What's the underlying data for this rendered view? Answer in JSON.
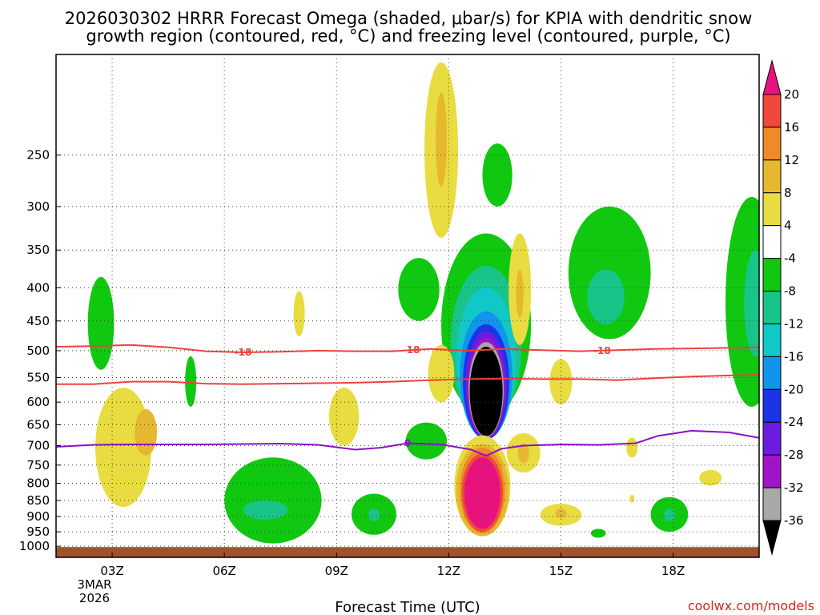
{
  "chart_data": {
    "type": "heatmap",
    "title_lines": [
      "2026030302 HRRR Forecast Omega (shaded, μbar/s) for KPIA with dendritic snow",
      "growth region (contoured, red, °C) and freezing level (contoured, purple, °C)"
    ],
    "xlabel": "Forecast Time (UTC)",
    "ylabel": "",
    "credit": "coolwx.com/models",
    "x_range_hours": [
      1.5,
      20.3
    ],
    "x_ticks": [
      {
        "hour": 3,
        "label": "03Z"
      },
      {
        "hour": 6,
        "label": "06Z"
      },
      {
        "hour": 9,
        "label": "09Z"
      },
      {
        "hour": 12,
        "label": "12Z"
      },
      {
        "hour": 15,
        "label": "15Z"
      },
      {
        "hour": 18,
        "label": "18Z"
      }
    ],
    "date_label_lines": [
      "3MAR",
      "2026"
    ],
    "y_range_hpa": [
      1040,
      175
    ],
    "y_ticks": [
      250,
      300,
      350,
      400,
      450,
      500,
      550,
      600,
      650,
      700,
      750,
      800,
      850,
      900,
      950,
      1000
    ],
    "grid": true,
    "colorbar": {
      "labels": [
        "20",
        "16",
        "12",
        "8",
        "4",
        "-4",
        "-8",
        "-12",
        "-16",
        "-20",
        "-24",
        "-28",
        "-32",
        "-36"
      ],
      "bins": [
        {
          "lo": 20,
          "hi": 99,
          "color": "#e8127e"
        },
        {
          "lo": 16,
          "hi": 20,
          "color": "#f0483a"
        },
        {
          "lo": 12,
          "hi": 16,
          "color": "#ee8a28"
        },
        {
          "lo": 8,
          "hi": 12,
          "color": "#e6b830"
        },
        {
          "lo": 4,
          "hi": 8,
          "color": "#e8dc40"
        },
        {
          "lo": -4,
          "hi": 4,
          "color": "#ffffff"
        },
        {
          "lo": -8,
          "hi": -4,
          "color": "#10c810"
        },
        {
          "lo": -12,
          "hi": -8,
          "color": "#18c488"
        },
        {
          "lo": -16,
          "hi": -12,
          "color": "#10c8c8"
        },
        {
          "lo": -20,
          "hi": -16,
          "color": "#1094ec"
        },
        {
          "lo": -24,
          "hi": -20,
          "color": "#1c34e8"
        },
        {
          "lo": -28,
          "hi": -24,
          "color": "#6c1ce0"
        },
        {
          "lo": -32,
          "hi": -28,
          "color": "#a014c8"
        },
        {
          "lo": -36,
          "hi": -32,
          "color": "#a8a8a8"
        },
        {
          "lo": -99,
          "hi": -36,
          "color": "#000000"
        }
      ]
    },
    "colors": {
      "ground": "#a0522d",
      "dgz_contour": "#f04040",
      "freezing_contour": "#8c10c8",
      "frame": "#000000"
    },
    "contours": [
      {
        "name": "dgz-top",
        "label": "-18",
        "label_at_hours": [
          6.5,
          11.0,
          16.1
        ],
        "color": "#f04040",
        "points": [
          [
            1.5,
            493
          ],
          [
            2.5,
            492
          ],
          [
            3.5,
            490
          ],
          [
            4.5,
            494
          ],
          [
            5.5,
            501
          ],
          [
            6.5,
            503
          ],
          [
            7.5,
            502
          ],
          [
            8.5,
            500
          ],
          [
            9.5,
            501
          ],
          [
            10.5,
            501
          ],
          [
            11.5,
            497
          ],
          [
            12.5,
            500
          ],
          [
            13.5,
            497
          ],
          [
            14.5,
            499
          ],
          [
            15.5,
            501
          ],
          [
            16.5,
            499
          ],
          [
            17.5,
            497
          ],
          [
            18.5,
            496
          ],
          [
            19.5,
            495
          ],
          [
            20.3,
            494
          ]
        ]
      },
      {
        "name": "dgz-bottom",
        "label": "",
        "label_at_hours": [],
        "color": "#f04040",
        "points": [
          [
            1.5,
            563
          ],
          [
            2.5,
            563
          ],
          [
            3.5,
            558
          ],
          [
            4.5,
            558
          ],
          [
            5.5,
            562
          ],
          [
            6.5,
            563
          ],
          [
            7.5,
            562
          ],
          [
            8.5,
            561
          ],
          [
            9.5,
            560
          ],
          [
            10.5,
            558
          ],
          [
            11.5,
            555
          ],
          [
            12.5,
            553
          ],
          [
            13.5,
            552
          ],
          [
            14.5,
            553
          ],
          [
            15.5,
            553
          ],
          [
            16.5,
            555
          ],
          [
            17.5,
            551
          ],
          [
            18.5,
            548
          ],
          [
            19.5,
            546
          ],
          [
            20.3,
            545
          ]
        ]
      },
      {
        "name": "freezing-level",
        "label": "0",
        "label_at_hours": [
          10.9
        ],
        "color": "#8c10c8",
        "points": [
          [
            1.5,
            703
          ],
          [
            2.5,
            698
          ],
          [
            3.5,
            697
          ],
          [
            5.5,
            697
          ],
          [
            7.5,
            695
          ],
          [
            8.5,
            698
          ],
          [
            9.5,
            710
          ],
          [
            10.2,
            705
          ],
          [
            10.9,
            694
          ],
          [
            11.8,
            697
          ],
          [
            12.6,
            710
          ],
          [
            13.0,
            726
          ],
          [
            13.4,
            708
          ],
          [
            14.0,
            700
          ],
          [
            15.0,
            697
          ],
          [
            16.0,
            698
          ],
          [
            17.0,
            694
          ],
          [
            17.6,
            676
          ],
          [
            18.5,
            664
          ],
          [
            19.5,
            668
          ],
          [
            20.3,
            681
          ]
        ]
      }
    ],
    "omega_fields": [
      {
        "band": "-4",
        "color": "#10c810",
        "hours": 0.35,
        "hpa_center": 460,
        "hpa_halfspan": 75,
        "at": 2.7
      },
      {
        "band": "-4",
        "color": "#10c810",
        "hours": 0.15,
        "hpa_center": 560,
        "hpa_halfspan": 50,
        "at": 5.1
      },
      {
        "band": "-4",
        "color": "#10c810",
        "hours": 1.3,
        "hpa_center": 860,
        "hpa_halfspan": 130,
        "at": 7.3
      },
      {
        "band": "-8",
        "color": "#18c488",
        "hours": 0.6,
        "hpa_center": 880,
        "hpa_halfspan": 30,
        "at": 7.1
      },
      {
        "band": "-4",
        "color": "#10c810",
        "hours": 0.6,
        "hpa_center": 895,
        "hpa_halfspan": 65,
        "at": 10.0
      },
      {
        "band": "-8",
        "color": "#18c488",
        "hours": 0.15,
        "hpa_center": 895,
        "hpa_halfspan": 20,
        "at": 10.0
      },
      {
        "band": "-4",
        "color": "#10c810",
        "hours": 0.55,
        "hpa_center": 405,
        "hpa_halfspan": 45,
        "at": 11.2
      },
      {
        "band": "-4",
        "color": "#10c810",
        "hours": 0.4,
        "hpa_center": 270,
        "hpa_halfspan": 30,
        "at": 13.3
      },
      {
        "band": "-4",
        "color": "#10c810",
        "hours": 1.2,
        "hpa_center": 480,
        "hpa_halfspan": 150,
        "at": 13.0
      },
      {
        "band": "-8",
        "color": "#18c488",
        "hours": 0.95,
        "hpa_center": 510,
        "hpa_halfspan": 140,
        "at": 13.0
      },
      {
        "band": "-12",
        "color": "#10c8c8",
        "hours": 0.8,
        "hpa_center": 530,
        "hpa_halfspan": 130,
        "at": 13.0
      },
      {
        "band": "-16",
        "color": "#1094ec",
        "hours": 0.7,
        "hpa_center": 560,
        "hpa_halfspan": 125,
        "at": 13.0
      },
      {
        "band": "-20",
        "color": "#1c34e8",
        "hours": 0.62,
        "hpa_center": 570,
        "hpa_halfspan": 115,
        "at": 13.0
      },
      {
        "band": "-24",
        "color": "#6c1ce0",
        "hours": 0.55,
        "hpa_center": 575,
        "hpa_halfspan": 108,
        "at": 13.0
      },
      {
        "band": "-28",
        "color": "#a014c8",
        "hours": 0.5,
        "hpa_center": 580,
        "hpa_halfspan": 102,
        "at": 13.0
      },
      {
        "band": "-32",
        "color": "#a8a8a8",
        "hours": 0.47,
        "hpa_center": 582,
        "hpa_halfspan": 97,
        "at": 13.0
      },
      {
        "band": "-36",
        "color": "#000000",
        "hours": 0.44,
        "hpa_center": 585,
        "hpa_halfspan": 92,
        "at": 13.0
      },
      {
        "band": "-4",
        "color": "#10c810",
        "hours": 1.1,
        "hpa_center": 390,
        "hpa_halfspan": 90,
        "at": 16.3
      },
      {
        "band": "-8",
        "color": "#18c488",
        "hours": 0.5,
        "hpa_center": 415,
        "hpa_halfspan": 40,
        "at": 16.2
      },
      {
        "band": "-4",
        "color": "#10c810",
        "hours": 0.5,
        "hpa_center": 895,
        "hpa_halfspan": 55,
        "at": 17.9
      },
      {
        "band": "-8",
        "color": "#18c488",
        "hours": 0.15,
        "hpa_center": 895,
        "hpa_halfspan": 20,
        "at": 17.9
      },
      {
        "band": "-4",
        "color": "#10c810",
        "hours": 0.2,
        "hpa_center": 955,
        "hpa_halfspan": 15,
        "at": 16.0
      },
      {
        "band": "-4",
        "color": "#10c810",
        "hours": 0.7,
        "hpa_center": 450,
        "hpa_halfspan": 160,
        "at": 20.1
      },
      {
        "band": "-8",
        "color": "#18c488",
        "hours": 0.3,
        "hpa_center": 430,
        "hpa_halfspan": 80,
        "at": 20.2
      },
      {
        "band": "-4",
        "color": "#10c810",
        "hours": 0.55,
        "hpa_center": 690,
        "hpa_halfspan": 45,
        "at": 11.4
      },
      {
        "band": "4",
        "color": "#e8dc40",
        "hours": 0.75,
        "hpa_center": 720,
        "hpa_halfspan": 150,
        "at": 3.3
      },
      {
        "band": "8",
        "color": "#e6b830",
        "hours": 0.3,
        "hpa_center": 670,
        "hpa_halfspan": 55,
        "at": 3.9
      },
      {
        "band": "4",
        "color": "#e8dc40",
        "hours": 0.15,
        "hpa_center": 440,
        "hpa_halfspan": 35,
        "at": 8.0
      },
      {
        "band": "4",
        "color": "#e8dc40",
        "hours": 0.4,
        "hpa_center": 635,
        "hpa_halfspan": 65,
        "at": 9.2
      },
      {
        "band": "4",
        "color": "#e8dc40",
        "hours": 0.45,
        "hpa_center": 250,
        "hpa_halfspan": 85,
        "at": 11.8
      },
      {
        "band": "8",
        "color": "#e6b830",
        "hours": 0.15,
        "hpa_center": 240,
        "hpa_halfspan": 40,
        "at": 11.8
      },
      {
        "band": "4",
        "color": "#e8dc40",
        "hours": 0.35,
        "hpa_center": 545,
        "hpa_halfspan": 55,
        "at": 11.8
      },
      {
        "band": "4",
        "color": "#e8dc40",
        "hours": 0.75,
        "hpa_center": 820,
        "hpa_halfspan": 145,
        "at": 12.9
      },
      {
        "band": "8",
        "color": "#e6b830",
        "hours": 0.7,
        "hpa_center": 830,
        "hpa_halfspan": 135,
        "at": 12.9
      },
      {
        "band": "12",
        "color": "#ee8a28",
        "hours": 0.6,
        "hpa_center": 830,
        "hpa_halfspan": 125,
        "at": 12.9
      },
      {
        "band": "16",
        "color": "#f0483a",
        "hours": 0.55,
        "hpa_center": 835,
        "hpa_halfspan": 115,
        "at": 12.9
      },
      {
        "band": "20",
        "color": "#e8127e",
        "hours": 0.48,
        "hpa_center": 835,
        "hpa_halfspan": 105,
        "at": 12.9
      },
      {
        "band": "4",
        "color": "#e8dc40",
        "hours": 0.45,
        "hpa_center": 720,
        "hpa_halfspan": 50,
        "at": 14.0
      },
      {
        "band": "8",
        "color": "#e6b830",
        "hours": 0.15,
        "hpa_center": 720,
        "hpa_halfspan": 25,
        "at": 14.0
      },
      {
        "band": "4",
        "color": "#e8dc40",
        "hours": 0.3,
        "hpa_center": 410,
        "hpa_halfspan": 80,
        "at": 13.9
      },
      {
        "band": "8",
        "color": "#e6b830",
        "hours": 0.1,
        "hpa_center": 410,
        "hpa_halfspan": 35,
        "at": 13.9
      },
      {
        "band": "4",
        "color": "#e8dc40",
        "hours": 0.3,
        "hpa_center": 560,
        "hpa_halfspan": 45,
        "at": 15.0
      },
      {
        "band": "4",
        "color": "#e8dc40",
        "hours": 0.55,
        "hpa_center": 895,
        "hpa_halfspan": 35,
        "at": 15.0
      },
      {
        "band": "8",
        "color": "#e6b830",
        "hours": 0.15,
        "hpa_center": 890,
        "hpa_halfspan": 15,
        "at": 15.0
      },
      {
        "band": "4",
        "color": "#e8dc40",
        "hours": 0.15,
        "hpa_center": 705,
        "hpa_halfspan": 25,
        "at": 16.9
      },
      {
        "band": "4",
        "color": "#e8dc40",
        "hours": 0.06,
        "hpa_center": 845,
        "hpa_halfspan": 12,
        "at": 16.9
      },
      {
        "band": "4",
        "color": "#e8dc40",
        "hours": 0.3,
        "hpa_center": 785,
        "hpa_halfspan": 22,
        "at": 19.0
      }
    ]
  }
}
